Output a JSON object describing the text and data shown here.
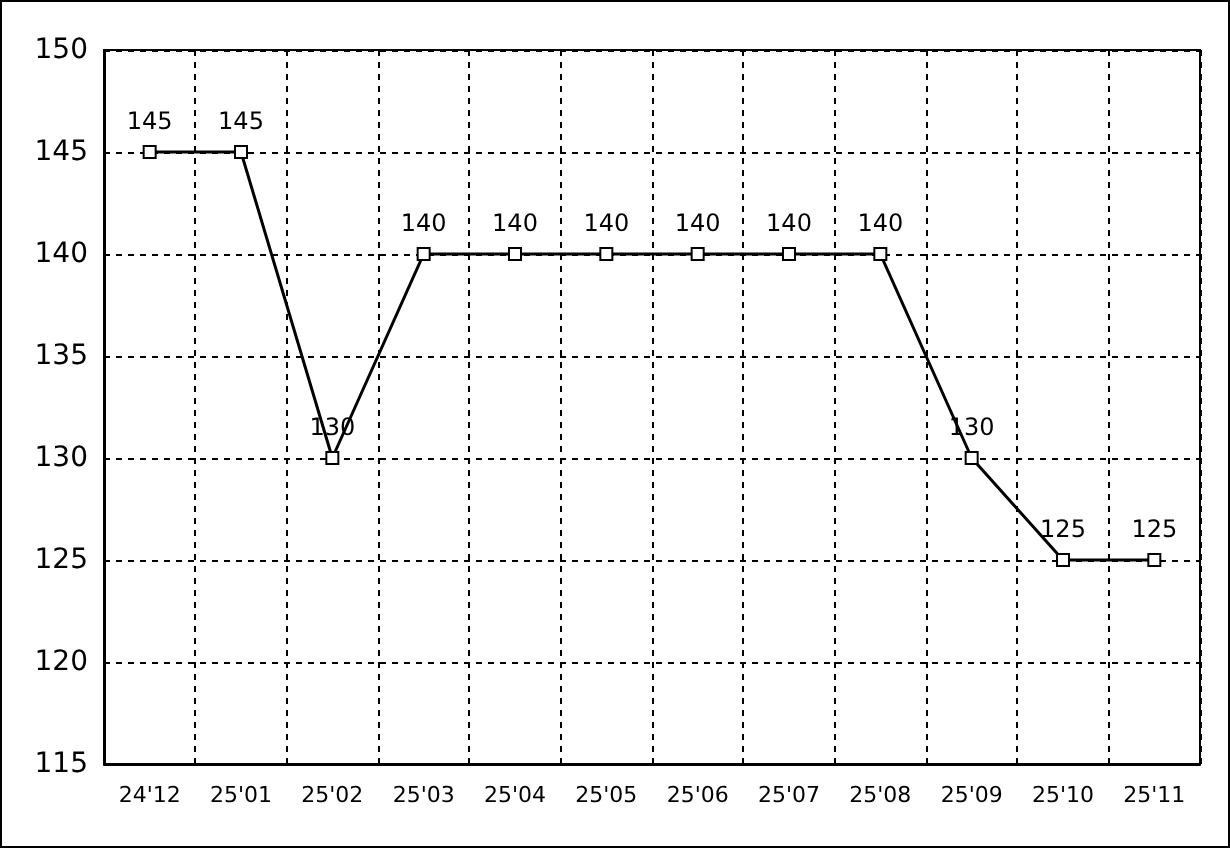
{
  "chart_data": {
    "type": "line",
    "categories": [
      "24'12",
      "25'01",
      "25'02",
      "25'03",
      "25'04",
      "25'05",
      "25'06",
      "25'07",
      "25'08",
      "25'09",
      "25'10",
      "25'11"
    ],
    "values": [
      145,
      145,
      130,
      140,
      140,
      140,
      140,
      140,
      140,
      130,
      125,
      125
    ],
    "color": "#000000",
    "ylim": [
      115,
      150
    ],
    "yticks": [
      115,
      120,
      125,
      130,
      135,
      140,
      145,
      150
    ],
    "grid": true,
    "marker": "square",
    "line_style": "solid",
    "data_labels": true
  }
}
